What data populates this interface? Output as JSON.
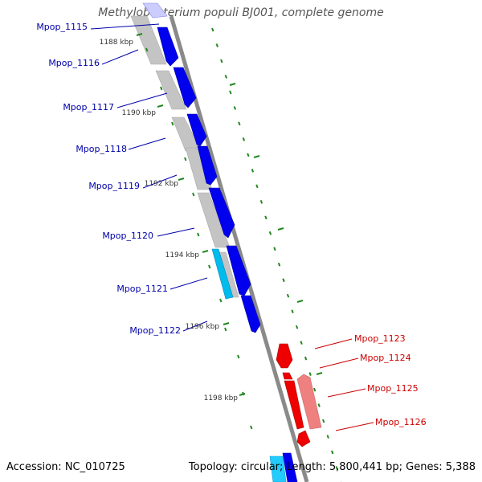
{
  "title": "Methylobacterium populi BJ001, complete genome",
  "footer": {
    "accession": "Accession: NC_010725",
    "summary": "Topology: circular; Length: 5,800,441 bp; Genes: 5,388"
  },
  "colors": {
    "forward_gene": "#0000ee",
    "forward_gene_alt": "#00bbee",
    "reverse_gene": "#ee0000",
    "reverse_gene_alt": "#ee8080",
    "backbone": "#888888",
    "tick": "#228822",
    "forward_label": "#0000aa",
    "reverse_label": "#cc0000"
  },
  "kbp_ticks": [
    "1188 kbp",
    "1190 kbp",
    "1192 kbp",
    "1194 kbp",
    "1196 kbp",
    "1198 kbp"
  ],
  "forward_labels": [
    "Mpop_1115",
    "Mpop_1116",
    "Mpop_1117",
    "Mpop_1118",
    "Mpop_1119",
    "Mpop_1120",
    "Mpop_1121",
    "Mpop_1122"
  ],
  "reverse_labels": [
    "Mpop_1123",
    "Mpop_1124",
    "Mpop_1125",
    "Mpop_1126"
  ]
}
